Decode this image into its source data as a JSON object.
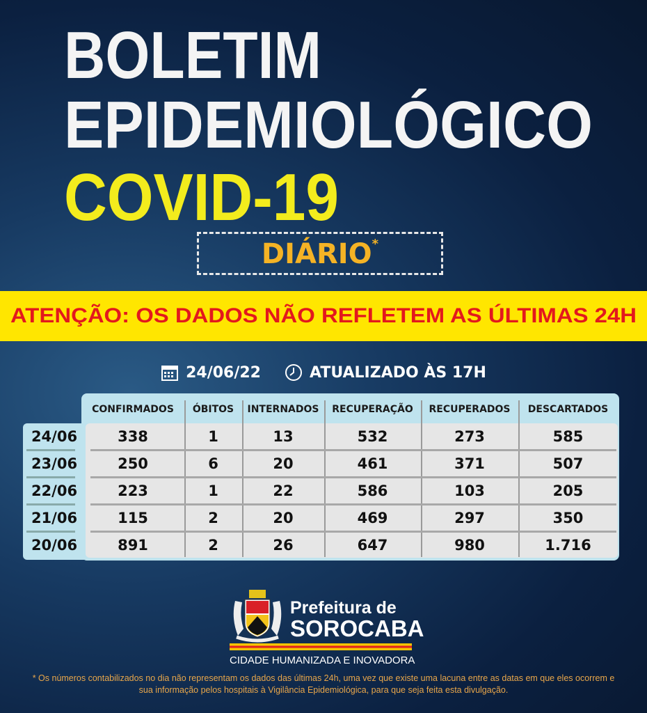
{
  "title": {
    "line1": "BOLETIM",
    "line2": "EPIDEMIOLÓGICO",
    "line3": "COVID-19",
    "badge": "DIÁRIO",
    "badge_mark": "*"
  },
  "banner": "ATENÇÃO: OS DADOS NÃO REFLETEM AS ÚLTIMAS 24H",
  "date": {
    "icon": "calendar-icon",
    "value": "24/06/22",
    "time_icon": "clock-icon",
    "updated": "ATUALIZADO ÀS 17H"
  },
  "table": {
    "headers": [
      "CONFIRMADOS",
      "ÓBITOS",
      "INTERNADOS",
      "RECUPERAÇÃO",
      "RECUPERADOS",
      "DESCARTADOS"
    ],
    "rows": [
      {
        "date": "24/06",
        "values": [
          "338",
          "1",
          "13",
          "532",
          "273",
          "585"
        ]
      },
      {
        "date": "23/06",
        "values": [
          "250",
          "6",
          "20",
          "461",
          "371",
          "507"
        ]
      },
      {
        "date": "22/06",
        "values": [
          "223",
          "1",
          "22",
          "586",
          "103",
          "205"
        ]
      },
      {
        "date": "21/06",
        "values": [
          "115",
          "2",
          "20",
          "469",
          "297",
          "350"
        ]
      },
      {
        "date": "20/06",
        "values": [
          "891",
          "2",
          "26",
          "647",
          "980",
          "1.716"
        ]
      }
    ]
  },
  "logo": {
    "line1": "Prefeitura de",
    "line2": "SOROCABA",
    "slogan": "CIDADE HUMANIZADA E INOVADORA"
  },
  "footnote": "* Os números contabilizados no dia não representam os dados das últimas 24h, uma vez que existe uma lacuna entre as datas em que eles ocorrem e sua informação pelos hospitais à Vigilância Epidemiológica, para que seja feita esta divulgação.",
  "colors": {
    "banner": "#ffe600",
    "banner_text": "#e3181d",
    "covid": "#f3ec1d",
    "diario": "#f5b325",
    "table_header": "#bfe3ee"
  }
}
